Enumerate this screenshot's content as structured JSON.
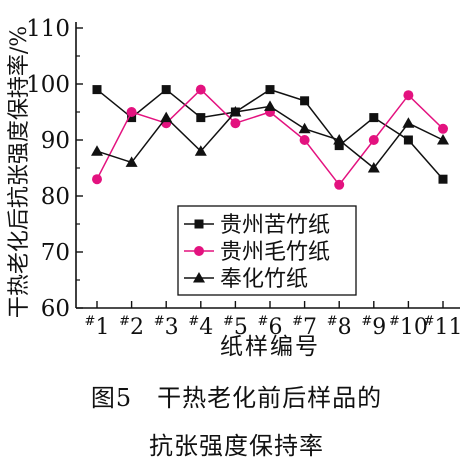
{
  "chart_data": {
    "type": "line",
    "categories": [
      "#1",
      "#2",
      "#3",
      "#4",
      "#5",
      "#6",
      "#7",
      "#8",
      "#9",
      "#10",
      "#11"
    ],
    "xlabel": "纸样编号",
    "ylabel": "干热老化后抗张强度保持率/%",
    "ylim": [
      60,
      110
    ],
    "yticks": [
      60,
      70,
      80,
      90,
      100,
      110
    ],
    "grid": false,
    "legend_position": "bottom-left",
    "series": [
      {
        "name": "贵州苦竹纸",
        "marker": "square",
        "color": "#111111",
        "values": [
          99,
          94,
          99,
          94,
          95,
          99,
          97,
          89,
          94,
          90,
          83
        ]
      },
      {
        "name": "贵州毛竹纸",
        "marker": "circle",
        "color": "#e3127f",
        "values": [
          83,
          95,
          93,
          99,
          93,
          95,
          90,
          82,
          90,
          98,
          92
        ]
      },
      {
        "name": "奉化竹纸",
        "marker": "triangle",
        "color": "#111111",
        "values": [
          88,
          86,
          94,
          88,
          95,
          96,
          92,
          90,
          85,
          93,
          90
        ]
      }
    ]
  },
  "caption": {
    "line1": "图5　干热老化前后样品的",
    "line2": "抗张强度保持率"
  }
}
